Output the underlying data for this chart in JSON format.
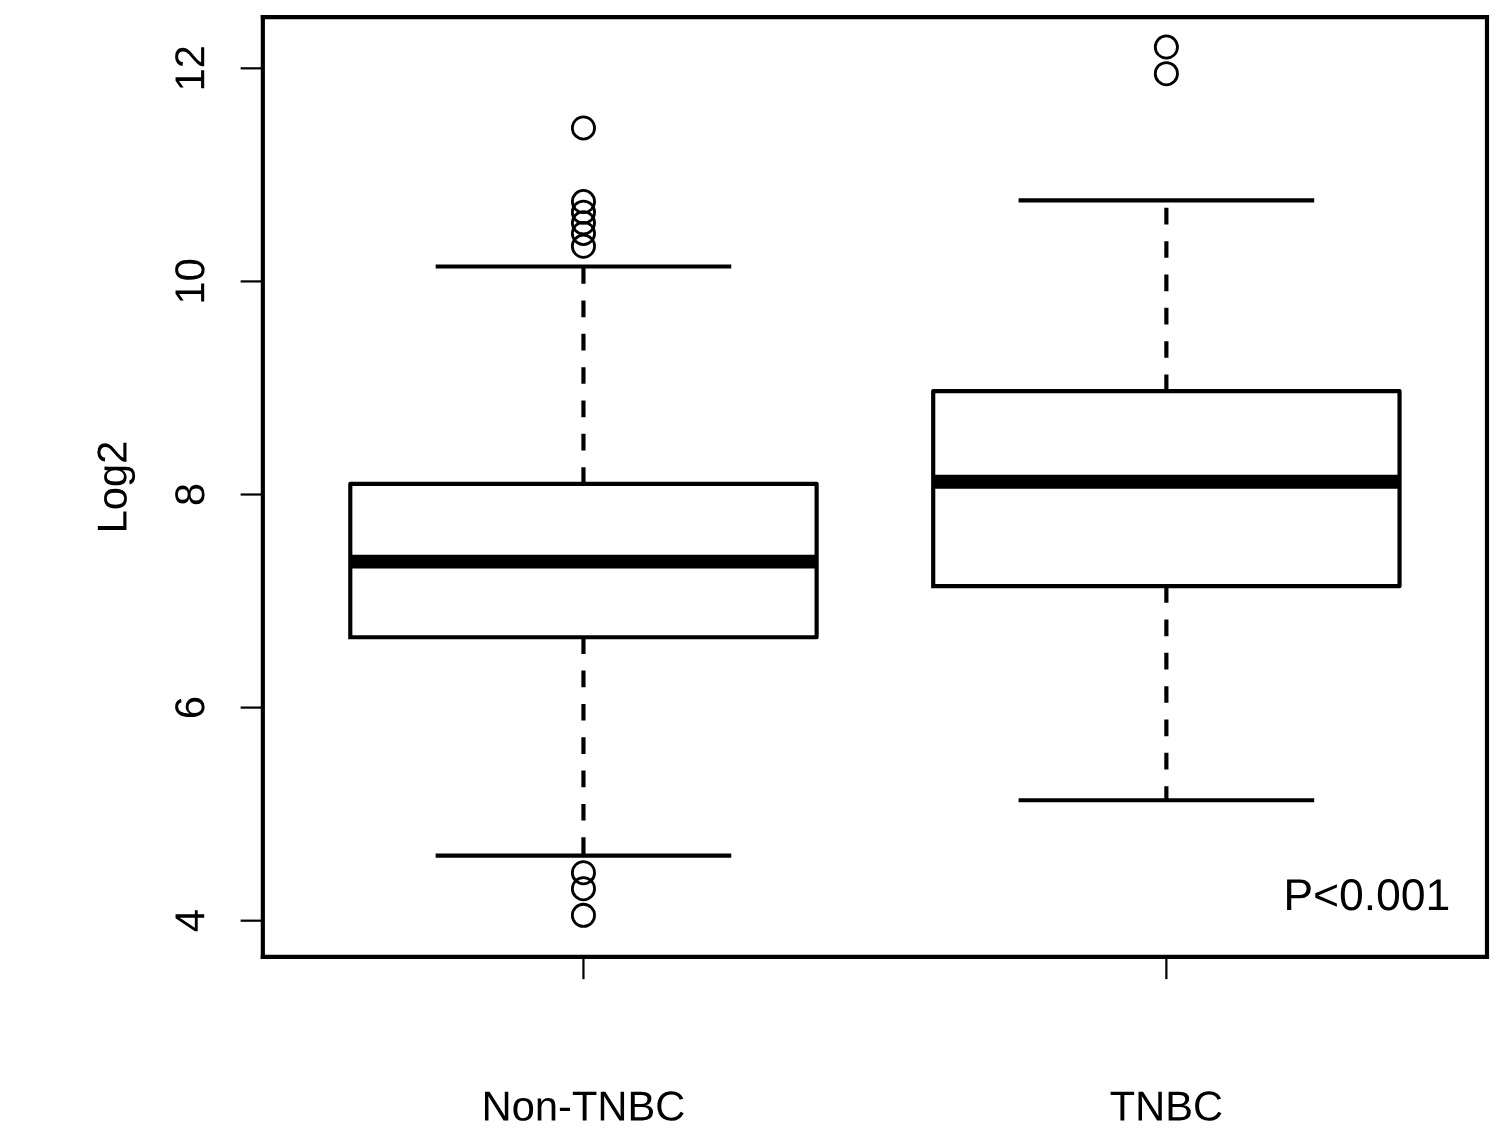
{
  "chart_data": {
    "type": "box",
    "ylabel": "Log2",
    "categories": [
      "Non-TNBC",
      "TNBC"
    ],
    "boxes": [
      {
        "low": 4.61,
        "q1": 6.66,
        "median": 7.37,
        "q3": 8.1,
        "high": 10.14,
        "outliers": [
          11.44,
          10.75,
          10.65,
          10.55,
          10.45,
          10.33,
          4.45,
          4.3,
          4.05
        ]
      },
      {
        "low": 5.13,
        "q1": 7.14,
        "median": 8.12,
        "q3": 8.97,
        "high": 10.76,
        "outliers": [
          12.2,
          11.95
        ]
      }
    ],
    "color": "#000000",
    "ylim": [
      3.66,
      12.48
    ],
    "yticks": [
      4,
      6,
      8,
      10,
      12
    ],
    "grid": false,
    "annotations": [
      "P<0.001"
    ]
  }
}
